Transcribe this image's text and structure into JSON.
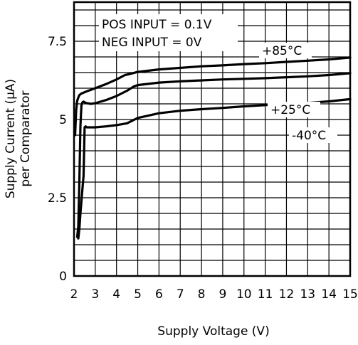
{
  "chart_data": {
    "type": "line",
    "title": "",
    "xlabel": "Supply Voltage (V)",
    "ylabel_line1": "Supply Current (μA)",
    "ylabel_line2": "per Comparator",
    "xlim": [
      2,
      15
    ],
    "ylim": [
      0,
      8.75
    ],
    "grid": true,
    "x_ticks": [
      2,
      3,
      4,
      5,
      6,
      7,
      8,
      9,
      10,
      11,
      12,
      13,
      14,
      15
    ],
    "y_ticks": [
      0,
      2.5,
      5,
      7.5
    ],
    "x_tick_labels": [
      "2",
      "3",
      "4",
      "5",
      "6",
      "7",
      "8",
      "9",
      "10",
      "11",
      "12",
      "13",
      "14",
      "15"
    ],
    "y_tick_labels": [
      "0",
      "2.5",
      "5",
      "7.5"
    ],
    "annotations": [
      "POS INPUT = 0.1V",
      "NEG INPUT = 0V"
    ],
    "series": [
      {
        "name": "+85°C",
        "x": [
          2.05,
          2.1,
          2.15,
          2.2,
          2.25,
          2.35,
          2.6,
          3,
          3.5,
          4,
          4.2,
          4.4,
          4.6,
          5,
          6,
          7,
          8,
          9,
          10,
          11,
          12,
          13,
          14,
          15
        ],
        "y": [
          4.5,
          5.3,
          5.6,
          5.7,
          5.78,
          5.83,
          5.9,
          6.0,
          6.13,
          6.28,
          6.35,
          6.42,
          6.45,
          6.52,
          6.6,
          6.65,
          6.7,
          6.73,
          6.77,
          6.8,
          6.84,
          6.88,
          6.92,
          6.98
        ]
      },
      {
        "name": "+25°C",
        "x": [
          2.15,
          2.2,
          2.25,
          2.3,
          2.35,
          2.4,
          2.45,
          2.5,
          2.6,
          2.8,
          3,
          3.5,
          4,
          4.5,
          4.8,
          5,
          6,
          7,
          8,
          9,
          10,
          11,
          12,
          13,
          14,
          15
        ],
        "y": [
          1.25,
          1.6,
          3.0,
          4.8,
          5.45,
          5.55,
          5.57,
          5.55,
          5.52,
          5.5,
          5.52,
          5.62,
          5.75,
          5.92,
          6.05,
          6.1,
          6.18,
          6.22,
          6.25,
          6.28,
          6.3,
          6.32,
          6.35,
          6.38,
          6.42,
          6.48
        ]
      },
      {
        "name": "-40°C",
        "x": [
          2.2,
          2.25,
          2.3,
          2.4,
          2.45,
          2.5,
          2.55,
          2.6,
          3,
          3.5,
          4,
          4.5,
          5,
          6,
          7,
          8,
          9,
          10,
          11,
          12,
          13,
          14,
          15
        ],
        "y": [
          1.2,
          1.5,
          2.0,
          2.8,
          3.2,
          4.75,
          4.78,
          4.75,
          4.75,
          4.78,
          4.82,
          4.88,
          5.05,
          5.2,
          5.28,
          5.33,
          5.37,
          5.42,
          5.46,
          5.5,
          5.53,
          5.58,
          5.65
        ]
      }
    ]
  }
}
